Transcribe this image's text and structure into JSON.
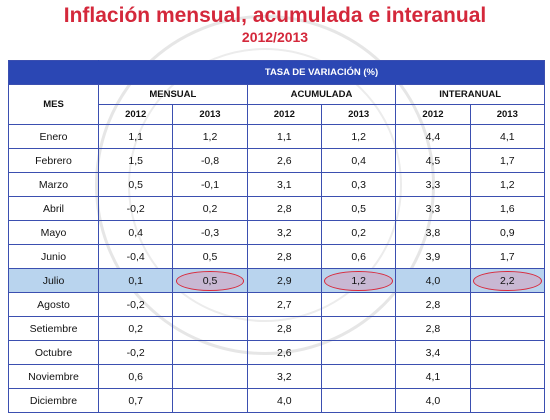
{
  "title": "Inflación mensual, acumulada e interanual",
  "subtitle": "2012/2013",
  "table": {
    "banner": "TASA DE VARIACIÓN (%)",
    "col_mes": "MES",
    "groups": [
      "MENSUAL",
      "ACUMULADA",
      "INTERANUAL"
    ],
    "years": [
      "2012",
      "2013",
      "2012",
      "2013",
      "2012",
      "2013"
    ],
    "rows": [
      {
        "mes": "Enero",
        "v": [
          "1,1",
          "1,2",
          "1,1",
          "1,2",
          "4,4",
          "4,1"
        ]
      },
      {
        "mes": "Febrero",
        "v": [
          "1,5",
          "-0,8",
          "2,6",
          "0,4",
          "4,5",
          "1,7"
        ]
      },
      {
        "mes": "Marzo",
        "v": [
          "0,5",
          "-0,1",
          "3,1",
          "0,3",
          "3,3",
          "1,2"
        ]
      },
      {
        "mes": "Abril",
        "v": [
          "-0,2",
          "0,2",
          "2,8",
          "0,5",
          "3,3",
          "1,6"
        ]
      },
      {
        "mes": "Mayo",
        "v": [
          "0,4",
          "-0,3",
          "3,2",
          "0,2",
          "3,8",
          "0,9"
        ]
      },
      {
        "mes": "Junio",
        "v": [
          "-0,4",
          "0,5",
          "2,8",
          "0,6",
          "3,9",
          "1,7"
        ]
      },
      {
        "mes": "Julio",
        "v": [
          "0,1",
          "0,5",
          "2,9",
          "1,2",
          "4,0",
          "2,2"
        ]
      },
      {
        "mes": "Agosto",
        "v": [
          "-0,2",
          "",
          "2,7",
          "",
          "2,8",
          ""
        ]
      },
      {
        "mes": "Setiembre",
        "v": [
          "0,2",
          "",
          "2,8",
          "",
          "2,8",
          ""
        ]
      },
      {
        "mes": "Octubre",
        "v": [
          "-0,2",
          "",
          "2,6",
          "",
          "3,4",
          ""
        ]
      },
      {
        "mes": "Noviembre",
        "v": [
          "0,6",
          "",
          "3,2",
          "",
          "4,1",
          ""
        ]
      },
      {
        "mes": "Diciembre",
        "v": [
          "0,7",
          "",
          "4,0",
          "",
          "4,0",
          ""
        ]
      }
    ]
  },
  "colors": {
    "title": "#d4283b",
    "header_band": "#2b47b4",
    "grid": "#3b4fb0",
    "highlight_row": "#b9d4ee",
    "marker": "#d8283b"
  }
}
